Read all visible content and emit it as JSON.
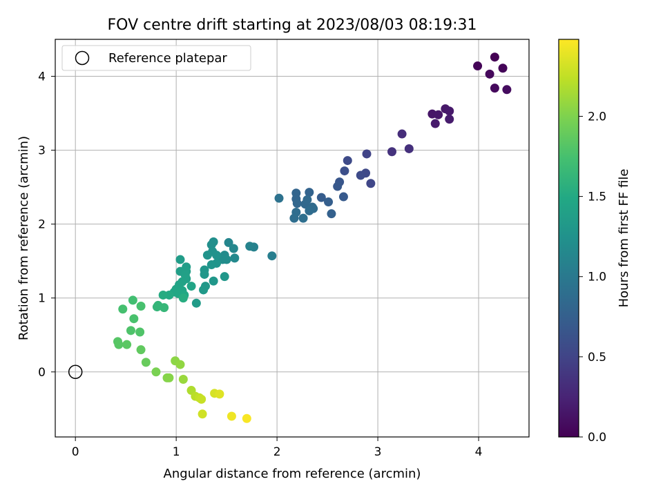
{
  "chart_data": {
    "type": "scatter",
    "title": "FOV centre drift starting at 2023/08/03 08:19:31",
    "xlabel": "Angular distance from reference (arcmin)",
    "ylabel": "Rotation from reference (arcmin)",
    "xlim": [
      -0.2,
      4.5
    ],
    "ylim": [
      -0.88,
      4.5
    ],
    "xticks": [
      0,
      1,
      2,
      3,
      4
    ],
    "yticks": [
      0,
      1,
      2,
      3,
      4
    ],
    "grid": true,
    "legend": {
      "position": "upper-left",
      "entries": [
        "Reference platepar"
      ]
    },
    "reference_point": {
      "label": "Reference platepar",
      "x": 0,
      "y": 0,
      "marker": "open-circle"
    },
    "colorbar": {
      "label": "Hours from first FF file",
      "colormap": "viridis",
      "range": [
        0,
        2.48
      ],
      "ticks": [
        "0.0",
        "0.5",
        "1.0",
        "1.5",
        "2.0"
      ]
    },
    "series": [
      {
        "values_format": "[x, y, hours]",
        "points": [
          [
            4.16,
            4.26,
            0.0
          ],
          [
            3.99,
            4.14,
            0.02
          ],
          [
            4.24,
            4.11,
            0.03
          ],
          [
            4.11,
            4.03,
            0.05
          ],
          [
            4.16,
            3.84,
            0.06
          ],
          [
            4.28,
            3.82,
            0.08
          ],
          [
            3.54,
            3.49,
            0.14
          ],
          [
            3.6,
            3.48,
            0.15
          ],
          [
            3.67,
            3.56,
            0.16
          ],
          [
            3.71,
            3.53,
            0.17
          ],
          [
            3.57,
            3.36,
            0.18
          ],
          [
            3.71,
            3.42,
            0.19
          ],
          [
            3.24,
            3.22,
            0.32
          ],
          [
            3.31,
            3.02,
            0.34
          ],
          [
            3.14,
            2.98,
            0.36
          ],
          [
            2.89,
            2.95,
            0.5
          ],
          [
            2.7,
            2.86,
            0.55
          ],
          [
            2.93,
            2.55,
            0.52
          ],
          [
            2.88,
            2.69,
            0.54
          ],
          [
            2.83,
            2.66,
            0.56
          ],
          [
            2.67,
            2.72,
            0.6
          ],
          [
            2.62,
            2.57,
            0.66
          ],
          [
            2.6,
            2.51,
            0.68
          ],
          [
            2.66,
            2.37,
            0.7
          ],
          [
            2.44,
            2.36,
            0.72
          ],
          [
            2.51,
            2.3,
            0.74
          ],
          [
            2.54,
            2.14,
            0.76
          ],
          [
            2.32,
            2.43,
            0.78
          ],
          [
            2.19,
            2.42,
            0.8
          ],
          [
            2.19,
            2.34,
            0.8
          ],
          [
            2.2,
            2.28,
            0.82
          ],
          [
            2.28,
            2.27,
            0.83
          ],
          [
            2.3,
            2.33,
            0.84
          ],
          [
            2.35,
            2.23,
            0.85
          ],
          [
            2.36,
            2.21,
            0.86
          ],
          [
            2.32,
            2.18,
            0.87
          ],
          [
            2.19,
            2.16,
            0.88
          ],
          [
            2.17,
            2.08,
            0.89
          ],
          [
            2.26,
            2.08,
            0.9
          ],
          [
            2.02,
            2.35,
            0.93
          ],
          [
            1.95,
            1.57,
            1.05
          ],
          [
            1.77,
            1.69,
            1.08
          ],
          [
            1.73,
            1.7,
            1.1
          ],
          [
            1.52,
            1.75,
            1.12
          ],
          [
            1.57,
            1.67,
            1.14
          ],
          [
            1.58,
            1.54,
            1.16
          ],
          [
            1.48,
            1.58,
            1.18
          ],
          [
            1.46,
            1.52,
            1.2
          ],
          [
            1.5,
            1.52,
            1.2
          ],
          [
            1.37,
            1.76,
            1.22
          ],
          [
            1.35,
            1.72,
            1.22
          ],
          [
            1.36,
            1.63,
            1.24
          ],
          [
            1.4,
            1.58,
            1.25
          ],
          [
            1.31,
            1.58,
            1.26
          ],
          [
            1.4,
            1.47,
            1.27
          ],
          [
            1.35,
            1.45,
            1.28
          ],
          [
            1.28,
            1.38,
            1.29
          ],
          [
            1.28,
            1.32,
            1.3
          ],
          [
            1.48,
            1.29,
            1.3
          ],
          [
            1.37,
            1.23,
            1.31
          ],
          [
            1.29,
            1.16,
            1.32
          ],
          [
            1.27,
            1.11,
            1.33
          ],
          [
            1.2,
            0.93,
            1.35
          ],
          [
            1.04,
            1.52,
            1.36
          ],
          [
            1.1,
            1.42,
            1.37
          ],
          [
            1.04,
            1.36,
            1.38
          ],
          [
            1.1,
            1.36,
            1.39
          ],
          [
            1.09,
            1.31,
            1.4
          ],
          [
            1.1,
            1.26,
            1.41
          ],
          [
            1.06,
            1.22,
            1.42
          ],
          [
            1.03,
            1.18,
            1.43
          ],
          [
            1.15,
            1.16,
            1.44
          ],
          [
            1.0,
            1.12,
            1.45
          ],
          [
            1.06,
            1.1,
            1.46
          ],
          [
            0.98,
            1.08,
            1.47
          ],
          [
            1.02,
            1.06,
            1.48
          ],
          [
            1.08,
            1.04,
            1.49
          ],
          [
            0.93,
            1.04,
            1.5
          ],
          [
            0.87,
            1.04,
            1.52
          ],
          [
            1.07,
            1.0,
            1.53
          ],
          [
            0.82,
            0.9,
            1.62
          ],
          [
            0.81,
            0.88,
            1.63
          ],
          [
            0.88,
            0.87,
            1.64
          ],
          [
            0.57,
            0.97,
            1.72
          ],
          [
            0.47,
            0.85,
            1.74
          ],
          [
            0.65,
            0.89,
            1.75
          ],
          [
            0.58,
            0.72,
            1.76
          ],
          [
            0.55,
            0.56,
            1.78
          ],
          [
            0.64,
            0.54,
            1.79
          ],
          [
            0.42,
            0.41,
            1.82
          ],
          [
            0.43,
            0.37,
            1.83
          ],
          [
            0.51,
            0.37,
            1.84
          ],
          [
            0.65,
            0.3,
            1.87
          ],
          [
            0.7,
            0.13,
            1.9
          ],
          [
            0.8,
            0.0,
            1.98
          ],
          [
            0.91,
            -0.08,
            2.02
          ],
          [
            0.93,
            -0.08,
            2.03
          ],
          [
            0.99,
            0.15,
            2.05
          ],
          [
            1.04,
            0.1,
            2.07
          ],
          [
            1.07,
            -0.1,
            2.1
          ],
          [
            1.15,
            -0.25,
            2.18
          ],
          [
            1.19,
            -0.33,
            2.22
          ],
          [
            1.23,
            -0.35,
            2.25
          ],
          [
            1.25,
            -0.37,
            2.27
          ],
          [
            1.26,
            -0.57,
            2.3
          ],
          [
            1.38,
            -0.29,
            2.33
          ],
          [
            1.43,
            -0.3,
            2.36
          ],
          [
            1.55,
            -0.6,
            2.42
          ],
          [
            1.7,
            -0.63,
            2.46
          ]
        ]
      }
    ]
  }
}
